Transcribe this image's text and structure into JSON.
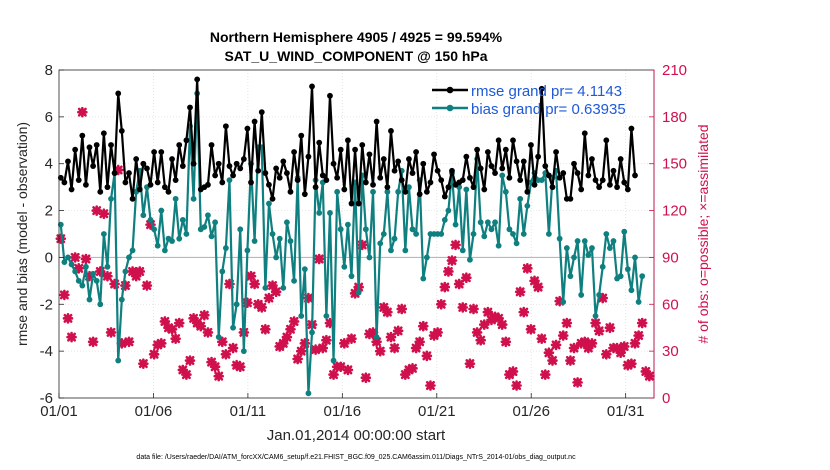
{
  "chart_data": {
    "type": "line",
    "title": "Northern Hemisphere 4905 / 4925 = 99.594%",
    "subtitle": "SAT_U_WIND_COMPONENT @ 150 hPa",
    "xlabel": "Jan.01,2014 00:00:00 start",
    "ylabel": "rmse and bias (model - observation)",
    "y2label": "# of obs: o=possible; ×=assimilated",
    "footnote": "data file: /Users/raeder/DAI/ATM_forcXX/CAM6_setup/f.e21.FHIST_BGC.f09_025.CAM6assim.011/Diags_NTrS_2014-01/obs_diag_output.nc",
    "xlim": [
      0,
      31.5
    ],
    "ylim": [
      -6,
      8
    ],
    "y2lim": [
      0,
      210
    ],
    "xticks": [
      {
        "label": "01/01",
        "day": 0
      },
      {
        "label": "01/06",
        "day": 5
      },
      {
        "label": "01/11",
        "day": 10
      },
      {
        "label": "01/16",
        "day": 15
      },
      {
        "label": "01/21",
        "day": 20
      },
      {
        "label": "01/26",
        "day": 25
      },
      {
        "label": "01/31",
        "day": 30
      }
    ],
    "yticks": [
      8,
      6,
      4,
      2,
      0,
      -2,
      -4,
      -6
    ],
    "y2ticks": [
      210,
      180,
      150,
      120,
      90,
      60,
      30,
      0
    ],
    "legend_position": "top-right",
    "colors": {
      "rmse": "#000000",
      "bias": "#0f7f7f",
      "obs": "#d0104c",
      "zero_line": "#b8b8b8"
    },
    "series": [
      {
        "name": "rmse grand pr= 4.1143",
        "values": [
          3.4,
          3.2,
          4.1,
          2.9,
          4.6,
          3.3,
          5.2,
          3.1,
          4.7,
          3.9,
          4.8,
          2.8,
          5.3,
          3.0,
          4.8,
          3.6,
          7.0,
          5.4,
          3.2,
          3.6,
          2.5,
          4.2,
          2.9,
          4.0,
          3.8,
          3.1,
          4.5,
          3.2,
          4.5,
          3.0,
          2.8,
          4.2,
          3.3,
          4.8,
          3.9,
          5.0,
          6.4,
          4.0,
          7.6,
          2.9,
          3.0,
          3.1,
          4.8,
          3.5,
          4.0,
          3.2,
          5.6,
          3.9,
          3.5,
          4.0,
          3.8,
          4.2,
          5.5,
          3.2,
          5.8,
          3.7,
          6.2,
          3.6,
          3.1,
          2.5,
          3.8,
          3.4,
          4.1,
          3.6,
          2.8,
          4.5,
          3.3,
          5.2,
          2.7,
          4.3,
          7.3,
          3.0,
          4.9,
          3.5,
          3.3,
          6.9,
          4.0,
          3.4,
          4.6,
          2.9,
          5.0,
          2.3,
          4.6,
          2.3,
          4.8,
          3.2,
          4.4,
          3.1,
          5.8,
          3.4,
          4.2,
          3.0,
          5.4,
          3.7,
          4.1,
          3.3,
          2.8,
          4.2,
          3.6,
          4.5,
          2.7,
          4.0,
          2.8,
          3.2,
          4.4,
          3.7,
          3.3,
          2.6,
          3.0,
          3.7,
          3.1,
          3.2,
          3.3,
          4.3,
          3.4,
          3.0,
          4.6,
          3.8,
          2.9,
          4.5,
          3.9,
          3.6,
          5.0,
          3.8,
          4.6,
          3.4,
          5.0,
          4.1,
          3.3,
          4.1,
          2.8,
          4.8,
          3.1,
          4.3,
          7.2,
          3.9,
          3.5,
          3.0,
          4.5,
          3.4,
          3.6,
          2.5,
          2.5,
          4.0,
          3.6,
          2.9,
          5.3,
          3.5,
          4.2,
          3.3,
          3.0,
          3.3,
          5.0,
          3.1,
          3.7,
          3.0,
          4.2,
          3.2,
          2.9,
          5.5,
          3.5
        ]
      },
      {
        "name": "bias grand pr= 0.63935",
        "values": [
          1.4,
          -0.2,
          0.0,
          -0.3,
          -0.6,
          -1.0,
          -1.2,
          -0.4,
          -1.8,
          -0.7,
          -1.0,
          -2.0,
          1.0,
          -0.4,
          2.5,
          3.6,
          -4.4,
          -1.8,
          -0.6,
          0.0,
          0.3,
          2.8,
          3.7,
          1.8,
          3.0,
          1.6,
          1.2,
          0.5,
          2.0,
          0.3,
          0.8,
          0.7,
          2.5,
          0.8,
          1.6,
          1.0,
          5.6,
          2.5,
          7.0,
          1.2,
          1.3,
          1.8,
          0.9,
          1.5,
          -3.4,
          -0.6,
          0.4,
          3.3,
          -3.0,
          -2.0,
          1.2,
          -4.0,
          0.3,
          4.0,
          0.7,
          4.7,
          4.7,
          -1.3,
          2.3,
          1.0,
          0.0,
          0.8,
          -1.3,
          1.5,
          0.7,
          -1.0,
          3.4,
          -2.5,
          -0.5,
          -5.8,
          -3.2,
          3.3,
          1.9,
          3.2,
          -2.5,
          1.9,
          -4.4,
          2.8,
          1.2,
          -0.4,
          1.4,
          -0.8,
          3.2,
          -1.5,
          3.5,
          1.2,
          0.0,
          2.8,
          -3.4,
          0.6,
          1.0,
          2.8,
          0.3,
          0.8,
          2.8,
          3.7,
          0.3,
          3.0,
          1.2,
          1.0,
          3.3,
          -0.9,
          0.0,
          1.0,
          1.0,
          1.0,
          1.0,
          1.6,
          2.0,
          3.6,
          1.4,
          3.0,
          0.3,
          2.9,
          -0.1,
          1.0,
          4.2,
          1.5,
          0.9,
          1.5,
          1.2,
          1.5,
          0.5,
          3.5,
          2.8,
          1.2,
          1.0,
          0.6,
          2.5,
          1.0,
          2.2,
          3.2,
          3.6,
          3.3,
          3.3,
          3.6,
          1.0,
          3.4,
          3.7,
          0.8,
          -1.9,
          0.4,
          -0.8,
          0.0,
          0.7,
          -1.6,
          0.7,
          0.1,
          0.4,
          -2.5,
          -1.6,
          -0.4,
          1.0,
          0.4,
          0.7,
          -0.9,
          -0.8,
          1.1,
          -0.5,
          -1.4,
          0.0,
          -1.9,
          -0.8
        ]
      },
      {
        "name": "assimilated",
        "values": [
          102,
          66,
          51,
          39,
          90,
          83,
          183,
          89,
          78,
          36,
          120,
          81,
          118,
          78,
          42,
          73,
          146,
          35,
          72,
          36,
          81,
          78,
          81,
          22,
          72,
          111,
          28,
          34,
          35,
          49,
          45,
          44,
          38,
          48,
          18,
          15,
          24,
          51,
          48,
          46,
          53,
          42,
          23,
          20,
          14,
          36,
          28,
          73,
          32,
          21,
          20,
          42,
          61,
          78,
          73,
          60,
          58,
          44,
          64,
          72,
          68,
          33,
          35,
          39,
          44,
          49,
          25,
          30,
          35,
          64,
          47,
          31,
          89,
          32,
          37,
          48,
          15,
          20,
          20,
          35,
          18,
          38,
          67,
          71,
          98,
          13,
          41,
          42,
          36,
          30,
          58,
          55,
          39,
          32,
          43,
          57,
          15,
          18,
          19,
          32,
          36,
          46,
          27,
          8,
          40,
          42,
          60,
          71,
          81,
          88,
          98,
          73,
          58,
          77,
          22,
          57,
          42,
          37,
          47,
          55,
          50,
          52,
          51,
          47,
          36,
          15,
          17,
          8,
          68,
          55,
          83,
          44,
          75,
          71,
          38,
          15,
          29,
          24,
          34,
          62,
          40,
          48,
          24,
          32,
          10,
          35,
          36,
          32,
          35,
          48,
          43,
          64,
          28,
          45,
          32,
          32,
          29,
          33,
          21,
          22,
          35,
          40,
          48,
          17,
          14
        ]
      },
      {
        "name": "possible",
        "values": [
          102,
          66,
          51,
          39,
          90,
          83,
          183,
          89,
          78,
          36,
          120,
          81,
          118,
          78,
          42,
          73,
          146,
          35,
          72,
          36,
          81,
          78,
          81,
          22,
          72,
          111,
          28,
          34,
          35,
          49,
          45,
          44,
          38,
          48,
          18,
          15,
          24,
          51,
          48,
          46,
          53,
          42,
          23,
          20,
          14,
          36,
          28,
          73,
          32,
          21,
          20,
          42,
          61,
          78,
          73,
          60,
          58,
          44,
          64,
          72,
          68,
          33,
          35,
          39,
          44,
          49,
          25,
          30,
          35,
          64,
          47,
          31,
          89,
          32,
          37,
          48,
          15,
          20,
          20,
          35,
          18,
          38,
          67,
          71,
          98,
          13,
          41,
          42,
          36,
          30,
          58,
          55,
          39,
          32,
          43,
          57,
          15,
          18,
          19,
          32,
          36,
          46,
          27,
          8,
          40,
          42,
          60,
          71,
          81,
          88,
          98,
          73,
          58,
          77,
          22,
          57,
          42,
          37,
          47,
          55,
          50,
          52,
          51,
          47,
          36,
          15,
          17,
          8,
          68,
          55,
          83,
          44,
          75,
          71,
          38,
          15,
          29,
          24,
          34,
          62,
          40,
          48,
          24,
          32,
          10,
          35,
          36,
          32,
          35,
          48,
          43,
          64,
          28,
          45,
          32,
          32,
          29,
          33,
          21,
          22,
          35,
          40,
          48,
          17,
          14
        ]
      }
    ]
  }
}
